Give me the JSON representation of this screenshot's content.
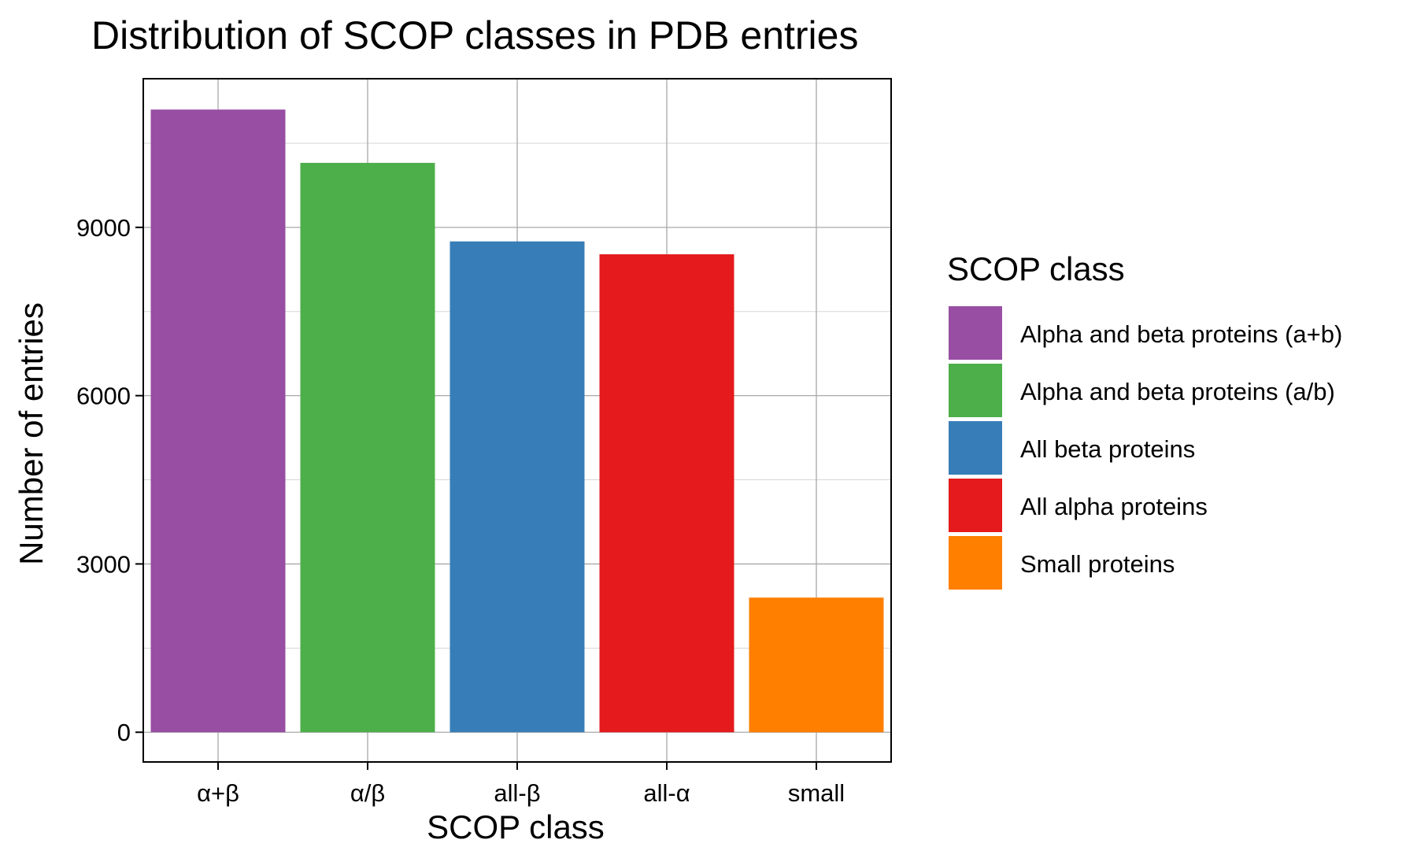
{
  "chart_data": {
    "type": "bar",
    "title": "Distribution of SCOP classes in PDB entries",
    "xlabel": "SCOP class",
    "ylabel": "Number of entries",
    "categories": [
      "α+β",
      "α/β",
      "all-β",
      "all-α",
      "small"
    ],
    "values": [
      11100,
      10150,
      8750,
      8520,
      2400
    ],
    "colors": [
      "#984ea3",
      "#4daf4a",
      "#377eb8",
      "#e41a1c",
      "#ff7f00"
    ],
    "ylim": [
      -530,
      11650
    ],
    "yticks": [
      0,
      3000,
      6000,
      9000
    ],
    "ytick_labels": [
      "0",
      "3000",
      "6000",
      "9000"
    ],
    "grid": true,
    "legend": {
      "title": "SCOP class",
      "placement": "right",
      "entries": [
        {
          "label": "Alpha and beta proteins (a+b)",
          "color": "#984ea3"
        },
        {
          "label": "Alpha and beta proteins (a/b)",
          "color": "#4daf4a"
        },
        {
          "label": "All beta proteins",
          "color": "#377eb8"
        },
        {
          "label": "All alpha proteins",
          "color": "#e41a1c"
        },
        {
          "label": "Small proteins",
          "color": "#ff7f00"
        }
      ]
    }
  }
}
